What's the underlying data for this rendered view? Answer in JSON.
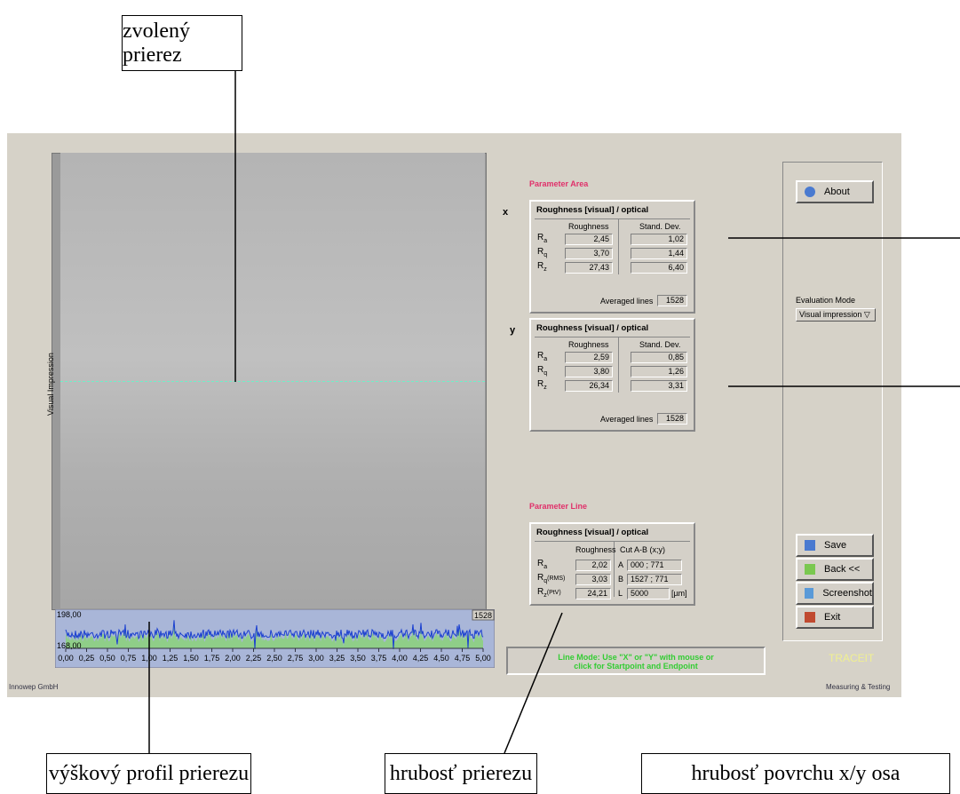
{
  "callouts": {
    "selected_cut": "zvolený prierez",
    "height_profile": "výškový profil prierezu",
    "cut_roughness": "hrubosť prierezu",
    "surface_roughness": "hrubosť povrchu x/y osa"
  },
  "image": {
    "label": "Visual Impression"
  },
  "profile": {
    "y_top": "198,00",
    "y_bottom": "168,00",
    "counter": "1528",
    "x_labels": [
      "0,00",
      "0,25",
      "0,50",
      "0,75",
      "1,00",
      "1,25",
      "1,50",
      "1,75",
      "2,00",
      "2,25",
      "2,50",
      "2,75",
      "3,00",
      "3,25",
      "3,50",
      "3,75",
      "4,00",
      "4,25",
      "4,50",
      "4,75",
      "5,00"
    ]
  },
  "parameter_area": {
    "heading": "Parameter Area",
    "panels": [
      {
        "axis": "x",
        "title": "Roughness [visual] / optical",
        "col1": "Roughness",
        "col2": "Stand. Dev.",
        "rows": [
          {
            "symbol": "R",
            "sub": "a",
            "roughness": "2,45",
            "std_dev": "1,02"
          },
          {
            "symbol": "R",
            "sub": "q",
            "roughness": "3,70",
            "std_dev": "1,44"
          },
          {
            "symbol": "R",
            "sub": "z",
            "roughness": "27,43",
            "std_dev": "6,40"
          }
        ],
        "averaged_label": "Averaged lines",
        "averaged": "1528"
      },
      {
        "axis": "y",
        "title": "Roughness [visual] / optical",
        "col1": "Roughness",
        "col2": "Stand. Dev.",
        "rows": [
          {
            "symbol": "R",
            "sub": "a",
            "roughness": "2,59",
            "std_dev": "0,85"
          },
          {
            "symbol": "R",
            "sub": "q",
            "roughness": "3,80",
            "std_dev": "1,26"
          },
          {
            "symbol": "R",
            "sub": "z",
            "roughness": "26,34",
            "std_dev": "3,31"
          }
        ],
        "averaged_label": "Averaged lines",
        "averaged": "1528"
      }
    ]
  },
  "parameter_line": {
    "heading": "Parameter Line",
    "title": "Roughness [visual] / optical",
    "col1": "Roughness",
    "col2": "Cut A-B  (x;y)",
    "rows": [
      {
        "symbol": "R",
        "sub": "a",
        "roughness": "2,02"
      },
      {
        "symbol": "R",
        "sub": "q",
        "note": "(RMS)",
        "roughness": "3,03"
      },
      {
        "symbol": "R",
        "sub": "z",
        "note": "(PtV)",
        "roughness": "24,21"
      }
    ],
    "cut": [
      {
        "label": "A",
        "value": "000 ; 771"
      },
      {
        "label": "B",
        "value": "1527 ; 771"
      },
      {
        "label": "L",
        "value": "5000",
        "unit": "[µm]"
      }
    ]
  },
  "status": [
    "Line Mode: Use \"X\" or \"Y\" with mouse or",
    "click for Startpoint and Endpoint"
  ],
  "sidebar": {
    "about": "About",
    "evaluation_label": "Evaluation Mode",
    "evaluation_value": "Visual impression",
    "buttons": [
      "Save",
      "Back <<",
      "Screenshot",
      "Exit"
    ],
    "brand": "TRACEIT"
  },
  "footer": {
    "left": "Innowep GmbH",
    "right": "Measuring & Testing"
  }
}
